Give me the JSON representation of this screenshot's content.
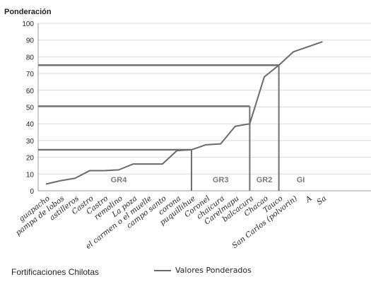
{
  "chart_data": {
    "type": "line",
    "ylabel": "Ponderación",
    "xlabel": "",
    "ylim": [
      0,
      100
    ],
    "yticks": [
      0,
      10,
      20,
      30,
      40,
      50,
      60,
      70,
      80,
      90,
      100
    ],
    "grid": true,
    "categories": [
      "guapacho",
      "pampa de lobos",
      "astilleros",
      "Castro",
      "Castro",
      "remolino",
      "La poza",
      "el carmen o el muelle",
      "campo santo",
      "corona",
      "puquillihue",
      "Coronel",
      "chaicura",
      "Carelmapu",
      "balcacura",
      "Chacao",
      "Tauco",
      "San Carlos (polvorin)",
      "A",
      "Sa"
    ],
    "series": [
      {
        "name": "Valores Ponderados",
        "values": [
          4,
          6,
          7.5,
          12,
          12,
          12.5,
          16,
          16,
          16,
          24,
          24.5,
          27.5,
          28,
          38.5,
          40,
          68,
          75,
          83,
          86,
          89
        ]
      }
    ],
    "thresholds": [
      {
        "value": 24.5,
        "end_category": 10
      },
      {
        "value": 50.5,
        "end_category": 14
      },
      {
        "value": 75,
        "end_category": 16
      }
    ],
    "groups": [
      {
        "label": "GR4",
        "from": 0,
        "to": 10
      },
      {
        "label": "GR3",
        "from": 10,
        "to": 14
      },
      {
        "label": "GR2",
        "from": 14,
        "to": 16
      },
      {
        "label": "GI",
        "from": 16,
        "to": 19
      }
    ],
    "colors": {
      "line": "#6a6a6a",
      "threshold": "#707070",
      "grid": "#d9d9d9",
      "group_label": "#7a7a7a"
    }
  },
  "footer": {
    "title": "Fortificaciones Chilotas"
  },
  "legend": {
    "label": "Valores Ponderados"
  }
}
